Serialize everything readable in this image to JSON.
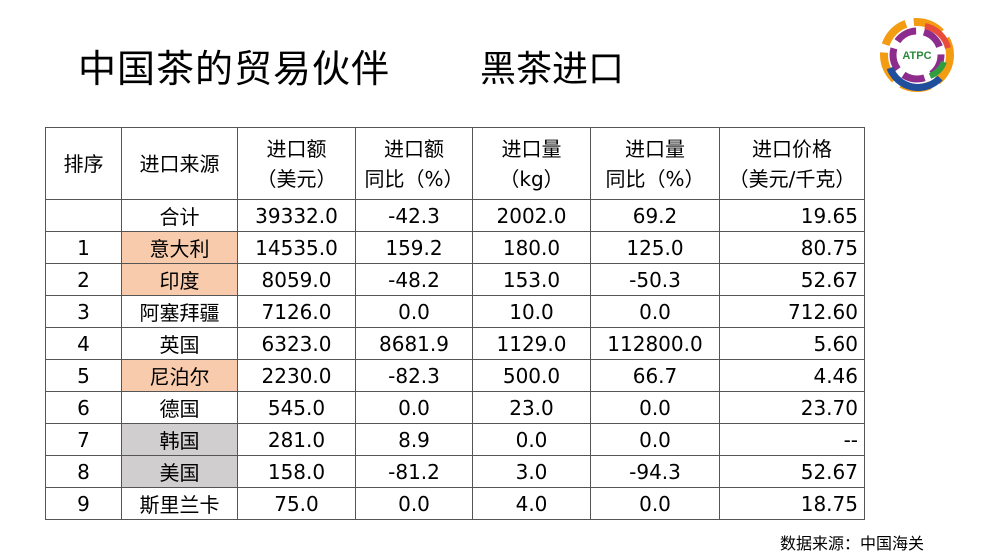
{
  "title": "中国茶的贸易伙伴",
  "subtitle": "黑茶进口",
  "logo_text": "ATPC",
  "colors": {
    "highlight_orange": "#f8cbad",
    "highlight_gray": "#d0cece"
  },
  "table": {
    "headers": [
      [
        "排序",
        ""
      ],
      [
        "进口来源",
        ""
      ],
      [
        "进口额",
        "（美元）"
      ],
      [
        "进口额",
        "同比（%）"
      ],
      [
        "进口量",
        "（kg）"
      ],
      [
        "进口量",
        "同比（%）"
      ],
      [
        "进口价格",
        "（美元/千克）"
      ]
    ],
    "rows": [
      {
        "rank": "",
        "source": "合计",
        "value": "39332.0",
        "value_yoy": "-42.3",
        "qty": "2002.0",
        "qty_yoy": "69.2",
        "price": "19.65",
        "highlight": ""
      },
      {
        "rank": "1",
        "source": "意大利",
        "value": "14535.0",
        "value_yoy": "159.2",
        "qty": "180.0",
        "qty_yoy": "125.0",
        "price": "80.75",
        "highlight": "orange"
      },
      {
        "rank": "2",
        "source": "印度",
        "value": "8059.0",
        "value_yoy": "-48.2",
        "qty": "153.0",
        "qty_yoy": "-50.3",
        "price": "52.67",
        "highlight": "orange"
      },
      {
        "rank": "3",
        "source": "阿塞拜疆",
        "value": "7126.0",
        "value_yoy": "0.0",
        "qty": "10.0",
        "qty_yoy": "0.0",
        "price": "712.60",
        "highlight": ""
      },
      {
        "rank": "4",
        "source": "英国",
        "value": "6323.0",
        "value_yoy": "8681.9",
        "qty": "1129.0",
        "qty_yoy": "112800.0",
        "price": "5.60",
        "highlight": ""
      },
      {
        "rank": "5",
        "source": "尼泊尔",
        "value": "2230.0",
        "value_yoy": "-82.3",
        "qty": "500.0",
        "qty_yoy": "66.7",
        "price": "4.46",
        "highlight": "orange"
      },
      {
        "rank": "6",
        "source": "德国",
        "value": "545.0",
        "value_yoy": "0.0",
        "qty": "23.0",
        "qty_yoy": "0.0",
        "price": "23.70",
        "highlight": ""
      },
      {
        "rank": "7",
        "source": "韩国",
        "value": "281.0",
        "value_yoy": "8.9",
        "qty": "0.0",
        "qty_yoy": "0.0",
        "price": "--",
        "highlight": "gray"
      },
      {
        "rank": "8",
        "source": "美国",
        "value": "158.0",
        "value_yoy": "-81.2",
        "qty": "3.0",
        "qty_yoy": "-94.3",
        "price": "52.67",
        "highlight": "gray"
      },
      {
        "rank": "9",
        "source": "斯里兰卡",
        "value": "75.0",
        "value_yoy": "0.0",
        "qty": "4.0",
        "qty_yoy": "0.0",
        "price": "18.75",
        "highlight": ""
      }
    ]
  },
  "source_note": "数据来源：中国海关"
}
